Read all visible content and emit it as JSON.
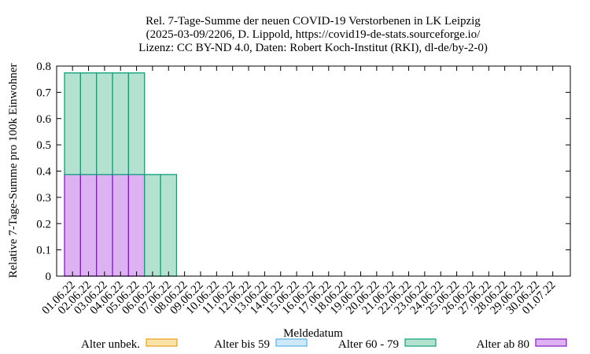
{
  "colors": {
    "unknown_fill": "#fde3a7",
    "unknown_stroke": "#e6a020",
    "u59_fill": "#cde8f7",
    "u59_stroke": "#5ab4e5",
    "a6079_fill": "#b3e2d1",
    "a6079_stroke": "#10a07a",
    "a80_fill": "#ddb2f3",
    "a80_stroke": "#8a1ac0"
  },
  "chart_data": {
    "type": "bar",
    "stacked": true,
    "title_lines": [
      "Rel. 7-Tage-Summe der neuen COVID-19 Verstorbenen in LK Leipzig",
      "(2025-03-09/2206, D. Lippold, https://covid19-de-stats.sourceforge.io/",
      "Lizenz: CC BY-ND 4.0, Daten: Robert Koch-Institut (RKI), dl-de/by-2-0)"
    ],
    "xlabel": "Meldedatum",
    "ylabel": "Relative 7-Tage-Summe pro 100k Einwohner",
    "ylim": [
      0,
      0.8
    ],
    "yticks": [
      "0",
      "0.1",
      "0.2",
      "0.3",
      "0.4",
      "0.5",
      "0.6",
      "0.7",
      "0.8"
    ],
    "categories": [
      "01.06.22",
      "02.06.22",
      "03.06.22",
      "04.06.22",
      "05.06.22",
      "06.06.22",
      "07.06.22",
      "08.06.22",
      "09.06.22",
      "10.06.22",
      "11.06.22",
      "12.06.22",
      "13.06.22",
      "14.06.22",
      "15.06.22",
      "16.06.22",
      "17.06.22",
      "18.06.22",
      "19.06.22",
      "20.06.22",
      "21.06.22",
      "22.06.22",
      "23.06.22",
      "24.06.22",
      "25.06.22",
      "26.06.22",
      "27.06.22",
      "28.06.22",
      "29.06.22",
      "30.06.22",
      "01.07.22"
    ],
    "legend_position": "bottom",
    "series": [
      {
        "name": "Alter ab 80",
        "color_key": "a80",
        "values": [
          0.387,
          0.387,
          0.387,
          0.387,
          0.387,
          0,
          0,
          0,
          0,
          0,
          0,
          0,
          0,
          0,
          0,
          0,
          0,
          0,
          0,
          0,
          0,
          0,
          0,
          0,
          0,
          0,
          0,
          0,
          0,
          0,
          0
        ]
      },
      {
        "name": "Alter 60 - 79",
        "color_key": "a6079",
        "values": [
          0.387,
          0.387,
          0.387,
          0.387,
          0.387,
          0.387,
          0.387,
          0,
          0,
          0,
          0,
          0,
          0,
          0,
          0,
          0,
          0,
          0,
          0,
          0,
          0,
          0,
          0,
          0,
          0,
          0,
          0,
          0,
          0,
          0,
          0
        ]
      },
      {
        "name": "Alter bis 59",
        "color_key": "u59",
        "values": [
          0,
          0,
          0,
          0,
          0,
          0,
          0,
          0,
          0,
          0,
          0,
          0,
          0,
          0,
          0,
          0,
          0,
          0,
          0,
          0,
          0,
          0,
          0,
          0,
          0,
          0,
          0,
          0,
          0,
          0,
          0
        ]
      },
      {
        "name": "Alter unbek.",
        "color_key": "unknown",
        "values": [
          0,
          0,
          0,
          0,
          0,
          0,
          0,
          0,
          0,
          0,
          0,
          0,
          0,
          0,
          0,
          0,
          0,
          0,
          0,
          0,
          0,
          0,
          0,
          0,
          0,
          0,
          0,
          0,
          0,
          0,
          0
        ]
      }
    ],
    "legend_order": [
      "Alter unbek.",
      "Alter bis 59",
      "Alter 60 - 79",
      "Alter ab 80"
    ]
  }
}
